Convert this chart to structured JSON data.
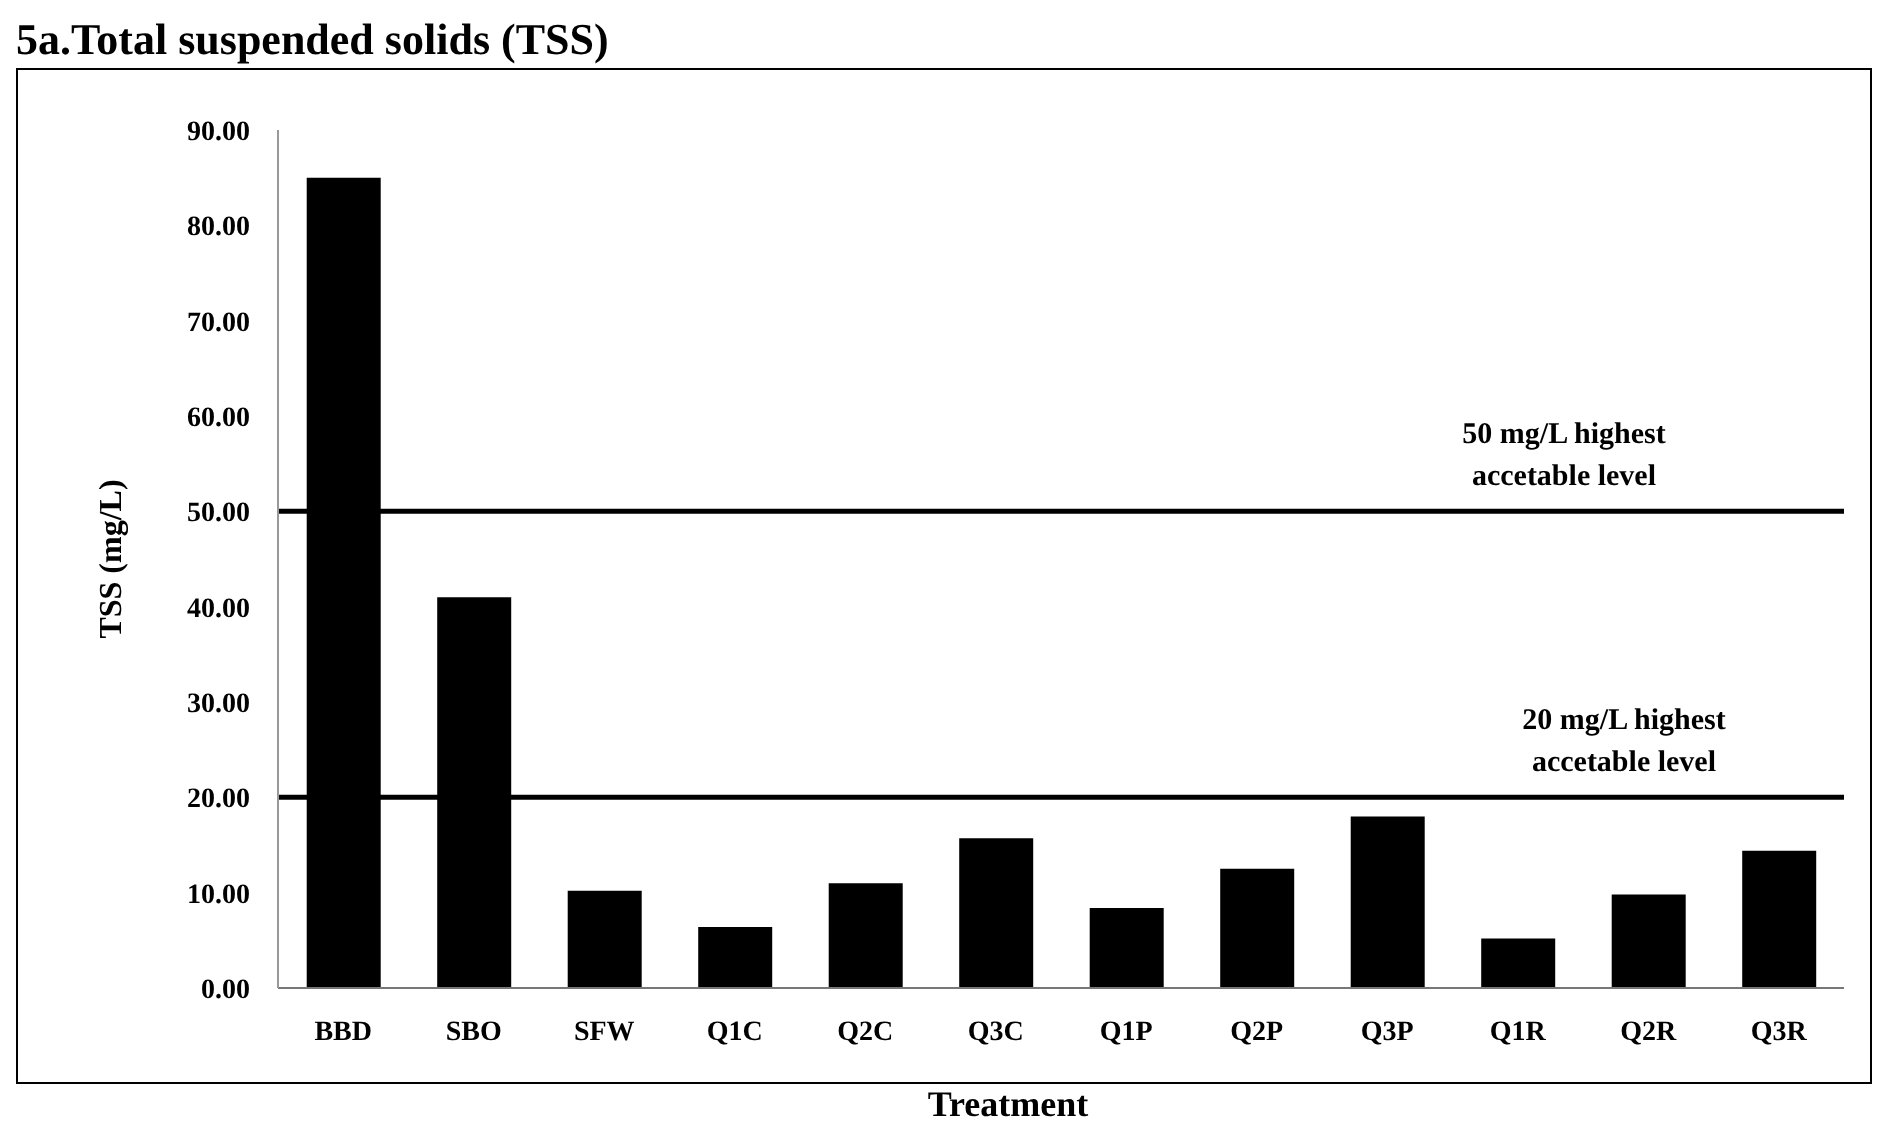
{
  "chart_data": {
    "type": "bar",
    "title": "5a.Total suspended solids (TSS)",
    "xlabel": "Treatment",
    "ylabel": "TSS (mg/L)",
    "categories": [
      "BBD",
      "SBO",
      "SFW",
      "Q1C",
      "Q2C",
      "Q3C",
      "Q1P",
      "Q2P",
      "Q3P",
      "Q1R",
      "Q2R",
      "Q3R"
    ],
    "values": [
      85.0,
      41.0,
      10.2,
      6.4,
      11.0,
      15.7,
      8.4,
      12.5,
      18.0,
      5.2,
      9.8,
      14.4
    ],
    "color": "#000000",
    "ylim": [
      0,
      90
    ],
    "yticks": [
      {
        "value": 0,
        "label": "0.00"
      },
      {
        "value": 10,
        "label": "10.00"
      },
      {
        "value": 20,
        "label": "20.00"
      },
      {
        "value": 30,
        "label": "30.00"
      },
      {
        "value": 40,
        "label": "40.00"
      },
      {
        "value": 50,
        "label": "50.00"
      },
      {
        "value": 60,
        "label": "60.00"
      },
      {
        "value": 70,
        "label": "70.00"
      },
      {
        "value": 80,
        "label": "80.00"
      },
      {
        "value": 90,
        "label": "90.00"
      }
    ],
    "ref_lines": [
      {
        "axis": "y",
        "value": 50,
        "label": "50 mg/L highest accetable level",
        "color": "#000000"
      },
      {
        "axis": "y",
        "value": 20,
        "label": "20 mg/L highest accetable level",
        "color": "#000000"
      }
    ],
    "grid": false
  }
}
